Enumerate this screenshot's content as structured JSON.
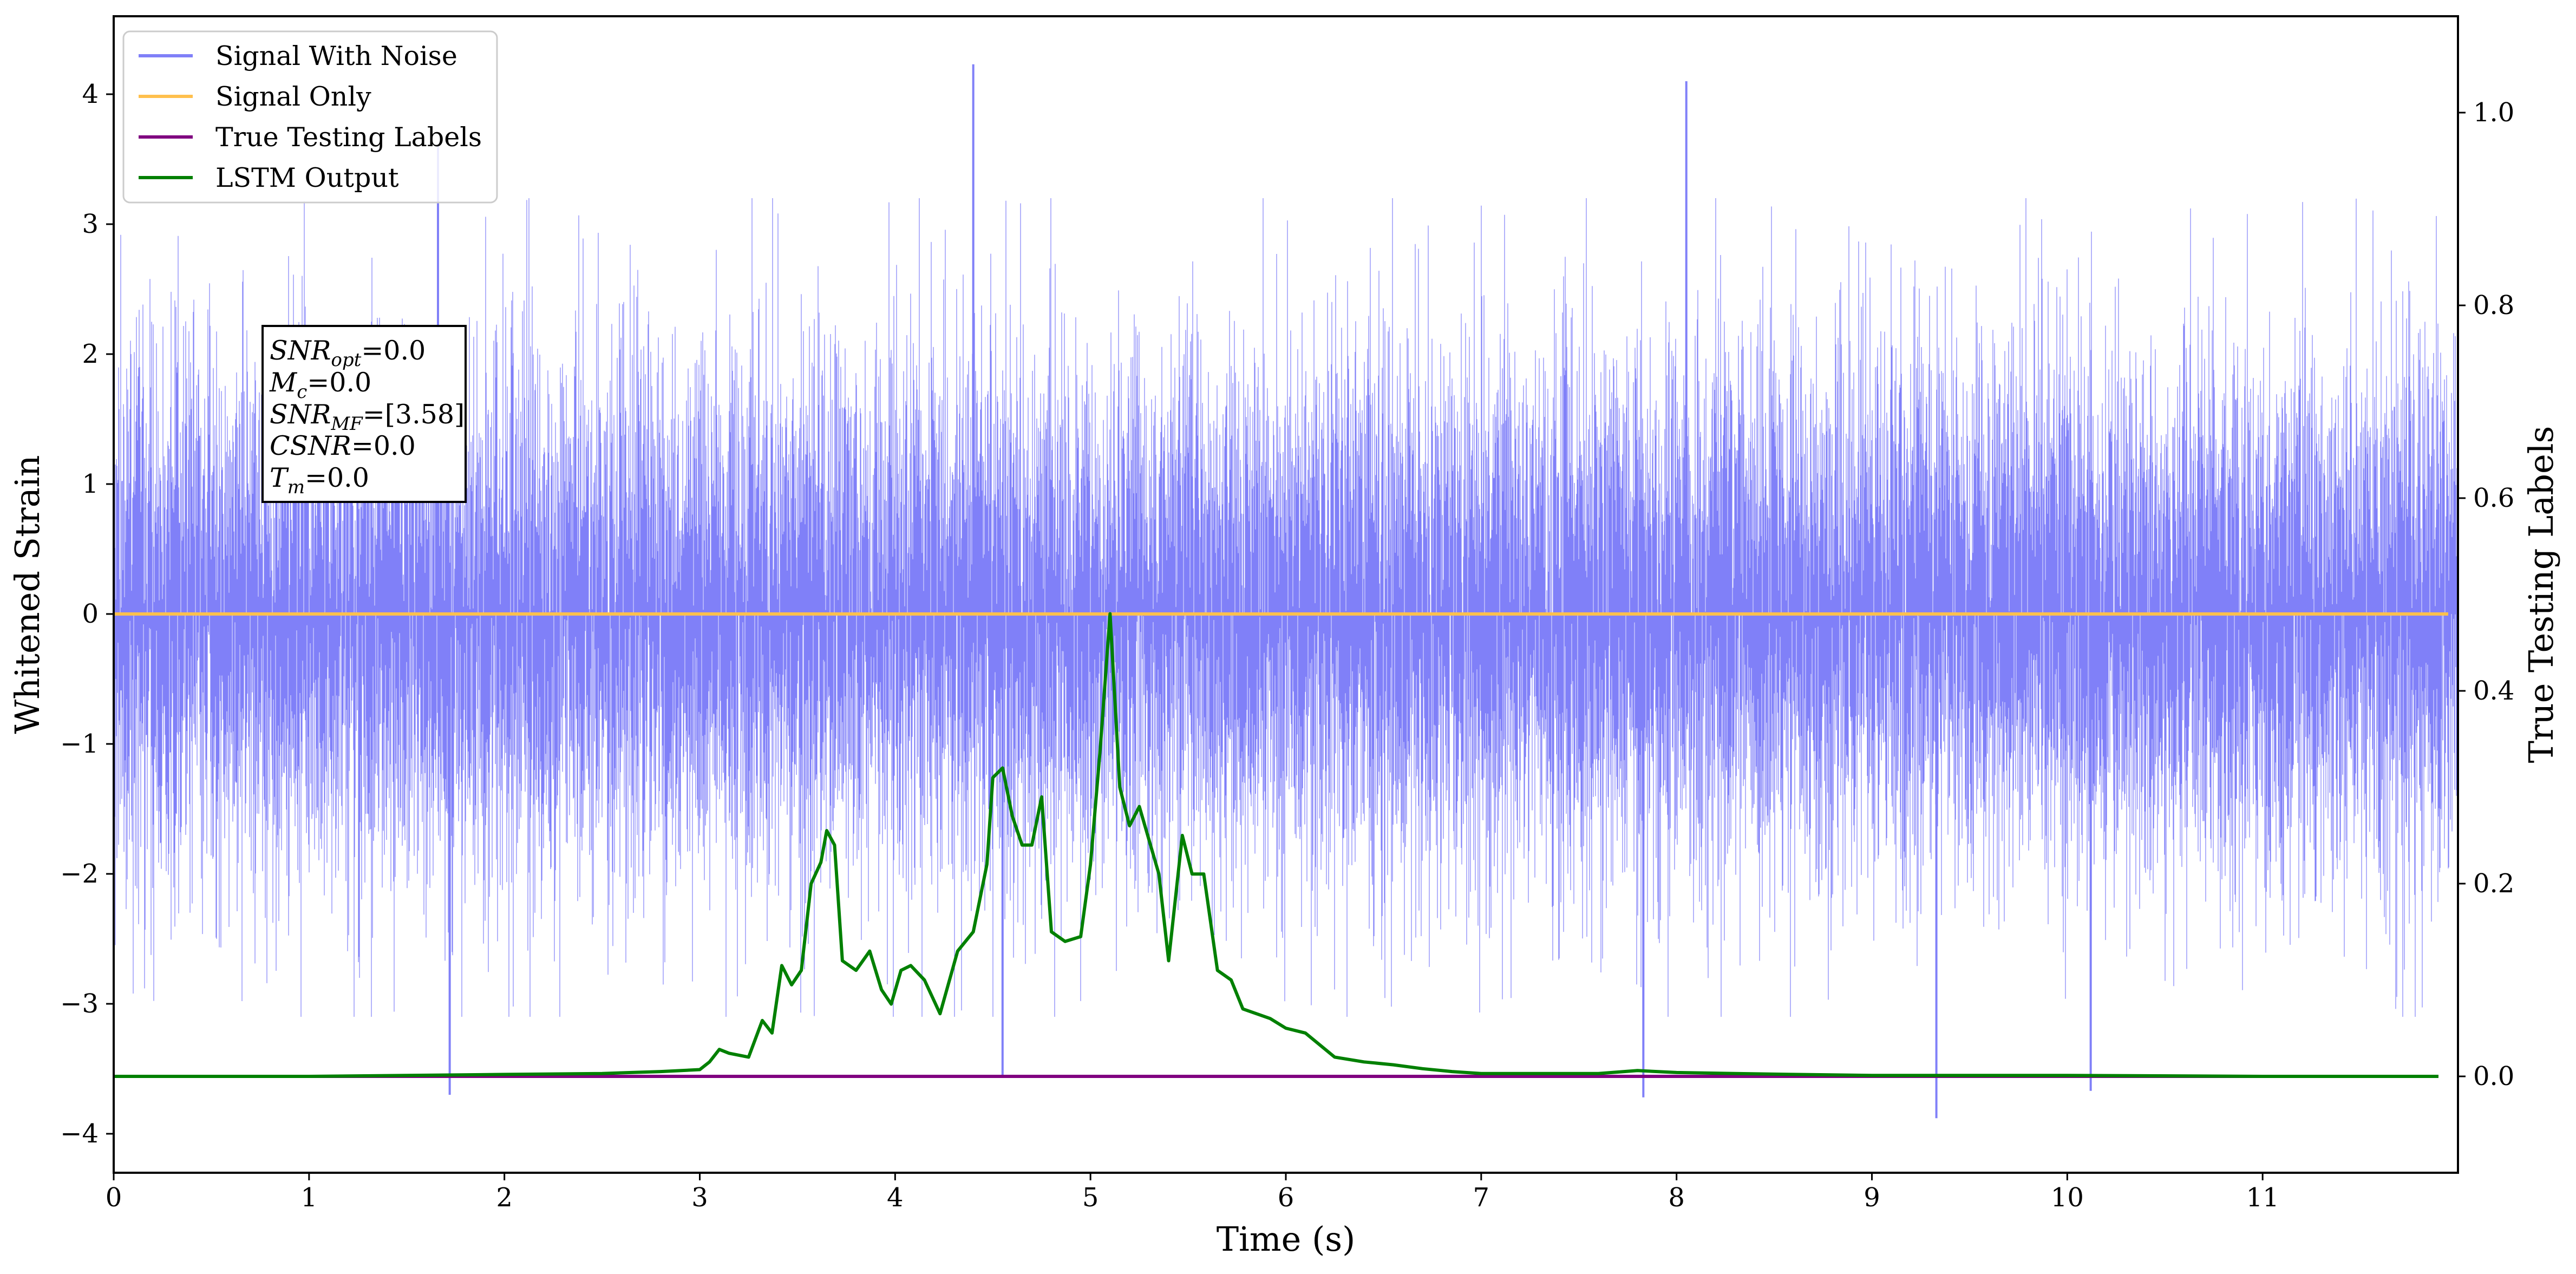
{
  "chart_data": {
    "type": "line",
    "xlabel": "Time (s)",
    "ylabel_left": "Whitened Strain",
    "ylabel_right": "True Testing Labels",
    "xlim": [
      0,
      12
    ],
    "ylim_left": [
      -4.3,
      4.6
    ],
    "ylim_right": [
      -0.1,
      1.1
    ],
    "xticks": [
      0,
      1,
      2,
      3,
      4,
      5,
      6,
      7,
      8,
      9,
      10,
      11
    ],
    "yticks_left": [
      -4,
      -3,
      -2,
      -1,
      0,
      1,
      2,
      3,
      4
    ],
    "yticks_left_labels": [
      "−4",
      "−3",
      "−2",
      "−1",
      "0",
      "1",
      "2",
      "3",
      "4"
    ],
    "yticks_right": [
      0.0,
      0.2,
      0.4,
      0.6,
      0.8,
      1.0
    ],
    "yticks_right_labels": [
      "0.0",
      "0.2",
      "0.4",
      "0.6",
      "0.8",
      "1.0"
    ],
    "grid": false,
    "legend_position": "top-left",
    "series": [
      {
        "name": "Signal With Noise",
        "axis": "left",
        "color": "#8080f8",
        "description": "dense noise, roughly gaussian, typical excursions ±2, extremes to about ±4",
        "notable_peaks": [
          [
            1.66,
            3.6
          ],
          [
            4.4,
            4.23
          ],
          [
            8.05,
            4.1
          ],
          [
            1.72,
            -3.7
          ],
          [
            4.55,
            -3.57
          ],
          [
            7.83,
            -3.72
          ],
          [
            9.33,
            -3.88
          ],
          [
            10.12,
            -3.67
          ]
        ]
      },
      {
        "name": "Signal Only",
        "axis": "left",
        "color": "#ffc04d",
        "constant": 0.0
      },
      {
        "name": "True Testing Labels",
        "axis": "right",
        "color": "#800080",
        "constant": 0.0
      },
      {
        "name": "LSTM Output",
        "axis": "right",
        "color": "#008000",
        "x": [
          0,
          1.0,
          2.0,
          2.5,
          2.8,
          3.0,
          3.05,
          3.1,
          3.15,
          3.25,
          3.32,
          3.37,
          3.42,
          3.47,
          3.52,
          3.57,
          3.62,
          3.65,
          3.69,
          3.73,
          3.8,
          3.87,
          3.93,
          3.98,
          4.03,
          4.08,
          4.15,
          4.23,
          4.32,
          4.4,
          4.47,
          4.5,
          4.55,
          4.6,
          4.65,
          4.7,
          4.75,
          4.8,
          4.87,
          4.95,
          5.0,
          5.05,
          5.1,
          5.15,
          5.2,
          5.25,
          5.35,
          5.4,
          5.47,
          5.52,
          5.58,
          5.65,
          5.72,
          5.78,
          5.85,
          5.92,
          6.0,
          6.1,
          6.25,
          6.4,
          6.55,
          6.7,
          6.85,
          7.0,
          7.3,
          7.6,
          7.8,
          8.0,
          8.3,
          8.6,
          9.0,
          10.0,
          11.0,
          11.9
        ],
        "values": [
          0.0,
          0.0,
          0.002,
          0.003,
          0.005,
          0.007,
          0.015,
          0.028,
          0.024,
          0.02,
          0.058,
          0.045,
          0.115,
          0.095,
          0.11,
          0.2,
          0.222,
          0.255,
          0.24,
          0.12,
          0.11,
          0.13,
          0.09,
          0.075,
          0.11,
          0.115,
          0.1,
          0.065,
          0.13,
          0.15,
          0.22,
          0.31,
          0.32,
          0.27,
          0.24,
          0.24,
          0.29,
          0.15,
          0.14,
          0.145,
          0.22,
          0.34,
          0.48,
          0.3,
          0.26,
          0.28,
          0.21,
          0.12,
          0.25,
          0.21,
          0.21,
          0.11,
          0.1,
          0.07,
          0.065,
          0.06,
          0.05,
          0.045,
          0.02,
          0.015,
          0.012,
          0.008,
          0.005,
          0.003,
          0.003,
          0.003,
          0.006,
          0.004,
          0.003,
          0.002,
          0.001,
          0.001,
          0.0,
          0.0
        ]
      }
    ],
    "annotation_lines": [
      "=0.0",
      "=0.0",
      "=[3.58]",
      "=0.0",
      "=0.0"
    ]
  }
}
